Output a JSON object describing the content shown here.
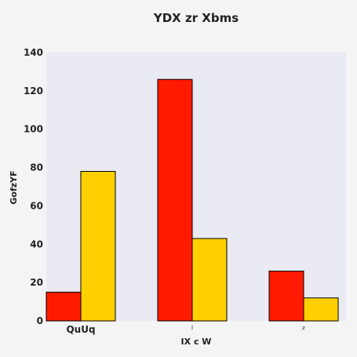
{
  "chart_data": {
    "type": "bar",
    "title": "YDX zr Xbms",
    "xlabel": "IX c W",
    "ylabel": "GofzYF",
    "categories": [
      "QuUq",
      "l",
      "z"
    ],
    "series": [
      {
        "values": [
          15,
          126,
          26
        ],
        "color": "#ff1a00"
      },
      {
        "values": [
          78,
          43,
          12
        ],
        "color": "#ffd000"
      }
    ],
    "ylim": [
      0,
      140
    ],
    "yticks": [
      0,
      20,
      40,
      60,
      80,
      100,
      120,
      140
    ],
    "grid": false,
    "legend": "none",
    "plot_background": "#eaeaf2"
  }
}
